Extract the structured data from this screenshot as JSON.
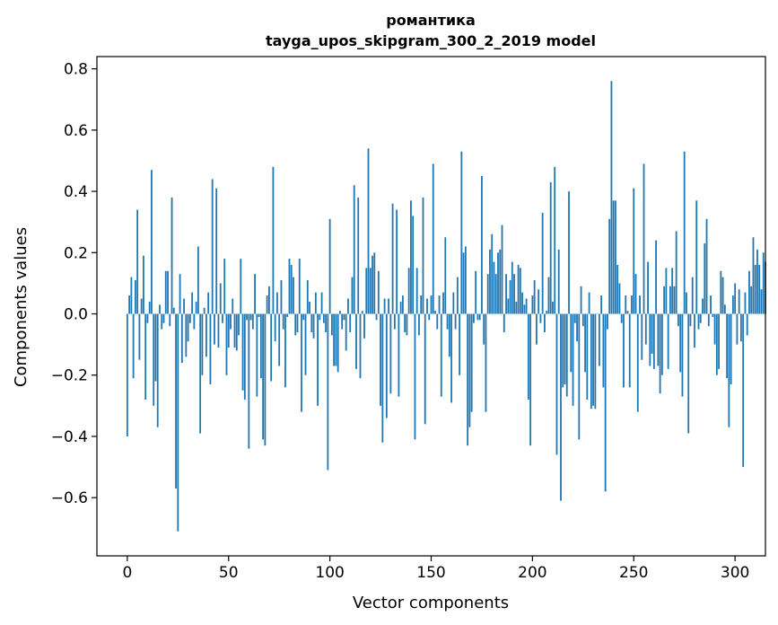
{
  "chart_data": {
    "type": "bar",
    "title": "романтика",
    "subtitle": "tayga_upos_skipgram_300_2_2019 model",
    "xlabel": "Vector components",
    "ylabel": "Components values",
    "xlim": [
      -15,
      315
    ],
    "ylim": [
      -0.79,
      0.84
    ],
    "x_ticks": [
      0,
      50,
      100,
      150,
      200,
      250,
      300
    ],
    "y_ticks": [
      -0.6,
      -0.4,
      -0.2,
      0.0,
      0.2,
      0.4,
      0.6,
      0.8
    ],
    "x_tick_labels": [
      "0",
      "50",
      "100",
      "150",
      "200",
      "250",
      "300"
    ],
    "y_tick_labels": [
      "−0.6",
      "−0.4",
      "−0.2",
      "0.0",
      "0.2",
      "0.4",
      "0.6",
      "0.8"
    ],
    "grid": false,
    "bar_color": "#1f77b4",
    "values": [
      -0.4,
      0.06,
      0.12,
      -0.21,
      0.11,
      0.34,
      -0.15,
      0.05,
      0.19,
      -0.28,
      -0.03,
      0.04,
      0.47,
      -0.3,
      -0.22,
      -0.37,
      0.03,
      -0.05,
      -0.03,
      0.14,
      0.14,
      -0.04,
      0.38,
      0.02,
      -0.57,
      -0.71,
      0.13,
      -0.16,
      0.05,
      -0.14,
      -0.09,
      -0.03,
      0.07,
      -0.05,
      0.04,
      0.22,
      -0.39,
      -0.2,
      0.02,
      -0.14,
      0.07,
      -0.23,
      0.44,
      -0.1,
      0.41,
      -0.11,
      0.1,
      -0.03,
      0.18,
      -0.2,
      -0.11,
      -0.05,
      0.05,
      -0.11,
      -0.12,
      -0.07,
      0.18,
      -0.25,
      -0.28,
      -0.02,
      -0.44,
      -0.02,
      -0.05,
      0.13,
      -0.27,
      -0.01,
      -0.21,
      -0.41,
      -0.43,
      0.06,
      0.09,
      -0.22,
      0.48,
      -0.09,
      0.07,
      -0.17,
      0.11,
      -0.05,
      -0.24,
      -0.01,
      0.18,
      0.16,
      0.12,
      -0.07,
      -0.06,
      0.18,
      -0.32,
      -0.02,
      -0.2,
      0.11,
      0.04,
      -0.06,
      -0.08,
      0.07,
      -0.3,
      -0.02,
      0.07,
      -0.03,
      -0.06,
      -0.51,
      0.31,
      -0.07,
      -0.17,
      -0.17,
      -0.19,
      0.01,
      -0.05,
      -0.02,
      -0.12,
      0.05,
      -0.06,
      0.12,
      0.42,
      -0.18,
      0.38,
      -0.21,
      0.01,
      -0.08,
      0.15,
      0.54,
      0.15,
      0.19,
      0.2,
      -0.02,
      0.14,
      -0.3,
      -0.42,
      0.05,
      -0.34,
      0.05,
      -0.26,
      0.36,
      -0.05,
      0.34,
      -0.27,
      0.04,
      0.06,
      -0.06,
      -0.07,
      0.15,
      0.37,
      0.32,
      -0.41,
      0.15,
      -0.07,
      0.06,
      0.38,
      -0.36,
      0.05,
      -0.02,
      0.06,
      0.49,
      0.01,
      -0.05,
      0.06,
      -0.27,
      0.07,
      0.25,
      -0.05,
      -0.14,
      -0.29,
      0.07,
      -0.05,
      0.12,
      -0.2,
      0.53,
      0.2,
      0.22,
      -0.43,
      -0.37,
      -0.32,
      -0.03,
      0.14,
      -0.02,
      -0.02,
      0.45,
      -0.1,
      -0.32,
      0.13,
      0.21,
      0.26,
      0.17,
      0.13,
      0.2,
      0.21,
      0.29,
      -0.06,
      0.13,
      0.05,
      0.11,
      0.17,
      0.13,
      0.04,
      0.16,
      0.15,
      0.07,
      0.03,
      0.05,
      -0.28,
      -0.43,
      0.06,
      0.11,
      -0.1,
      0.08,
      -0.03,
      0.33,
      -0.06,
      0.01,
      0.12,
      0.43,
      0.04,
      0.48,
      -0.46,
      0.21,
      -0.61,
      -0.24,
      -0.23,
      -0.27,
      0.4,
      -0.19,
      -0.3,
      -0.03,
      -0.09,
      -0.41,
      0.09,
      -0.04,
      -0.19,
      -0.28,
      0.07,
      -0.31,
      -0.3,
      -0.31,
      0.0,
      -0.17,
      0.06,
      -0.24,
      -0.58,
      -0.05,
      0.31,
      0.76,
      0.37,
      0.37,
      0.16,
      0.1,
      -0.03,
      -0.24,
      0.06,
      0.01,
      -0.24,
      0.06,
      0.41,
      0.13,
      -0.32,
      0.06,
      -0.15,
      0.49,
      -0.1,
      0.17,
      -0.17,
      -0.13,
      -0.18,
      0.24,
      -0.17,
      -0.26,
      -0.2,
      0.09,
      0.15,
      -0.18,
      0.09,
      0.15,
      0.09,
      0.27,
      -0.04,
      -0.19,
      -0.27,
      0.53,
      0.07,
      -0.39,
      -0.04,
      0.12,
      -0.11,
      0.37,
      -0.05,
      -0.03,
      0.05,
      0.23,
      0.31,
      -0.04,
      0.06,
      -0.01,
      -0.1,
      -0.2,
      -0.18,
      0.14,
      0.12,
      0.03,
      -0.21,
      -0.37,
      -0.23,
      0.06,
      0.1,
      -0.1,
      0.08,
      -0.09,
      -0.5,
      0.07,
      -0.07,
      0.14,
      0.09,
      0.25,
      0.16,
      0.21,
      0.16,
      0.08,
      0.2,
      0.17
    ]
  }
}
